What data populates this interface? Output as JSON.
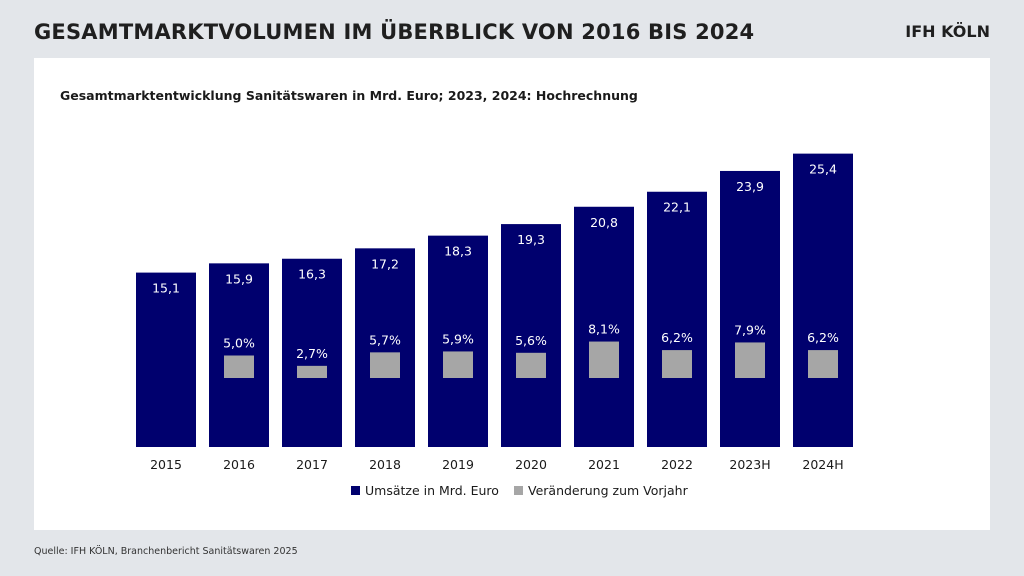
{
  "header": {
    "title": "GESAMTMARKTVOLUMEN IM ÜBERBLICK VON 2016 BIS 2024",
    "logo": "IFH KÖLN"
  },
  "footer": {
    "source": "Quelle: IFH KÖLN, Branchenbericht Sanitätswaren 2025"
  },
  "colors": {
    "revenue": "#00006e",
    "change": "#a6a6a6",
    "background": "#e3e6ea"
  },
  "chart_data": {
    "type": "bar",
    "title": "Gesamtmarktentwicklung Sanitätswaren in Mrd. Euro; 2023, 2024: Hochrechnung",
    "categories": [
      "2015",
      "2016",
      "2017",
      "2018",
      "2019",
      "2020",
      "2021",
      "2022",
      "2023H",
      "2024H"
    ],
    "series": [
      {
        "name": "Umsätze in Mrd. Euro",
        "values": [
          15.1,
          15.9,
          16.3,
          17.2,
          18.3,
          19.3,
          20.8,
          22.1,
          23.9,
          25.4
        ],
        "labels": [
          "15,1",
          "15,9",
          "16,3",
          "17,2",
          "18,3",
          "19,3",
          "20,8",
          "22,1",
          "23,9",
          "25,4"
        ]
      },
      {
        "name": "Veränderung zum Vorjahr",
        "values": [
          null,
          5.0,
          2.7,
          5.7,
          5.9,
          5.6,
          8.1,
          6.2,
          7.9,
          6.2
        ],
        "labels": [
          "",
          "5,0%",
          "2,7%",
          "5,7%",
          "5,9%",
          "5,6%",
          "8,1%",
          "6,2%",
          "7,9%",
          "6,2%"
        ]
      }
    ],
    "legend_position": "bottom",
    "grid": false
  }
}
